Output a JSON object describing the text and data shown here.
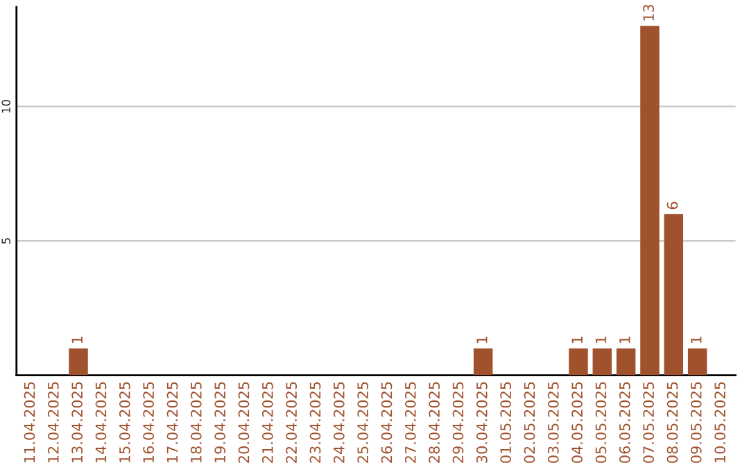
{
  "chart_data": {
    "type": "bar",
    "categories": [
      "11.04.2025",
      "12.04.2025",
      "13.04.2025",
      "14.04.2025",
      "15.04.2025",
      "16.04.2025",
      "17.04.2025",
      "18.04.2025",
      "19.04.2025",
      "20.04.2025",
      "21.04.2025",
      "22.04.2025",
      "23.04.2025",
      "24.04.2025",
      "25.04.2025",
      "26.04.2025",
      "27.04.2025",
      "28.04.2025",
      "29.04.2025",
      "30.04.2025",
      "01.05.2025",
      "02.05.2025",
      "03.05.2025",
      "04.05.2025",
      "05.05.2025",
      "06.05.2025",
      "07.05.2025",
      "08.05.2025",
      "09.05.2025",
      "10.05.2025"
    ],
    "values": [
      0,
      0,
      1,
      0,
      0,
      0,
      0,
      0,
      0,
      0,
      0,
      0,
      0,
      0,
      0,
      0,
      0,
      0,
      0,
      1,
      0,
      0,
      0,
      1,
      1,
      1,
      13,
      6,
      1,
      0
    ],
    "value_labels": [
      null,
      null,
      "1",
      null,
      null,
      null,
      null,
      null,
      null,
      null,
      null,
      null,
      null,
      null,
      null,
      null,
      null,
      null,
      null,
      "1",
      null,
      null,
      null,
      "1",
      "1",
      "1",
      "13",
      "6",
      "1",
      null
    ],
    "color": "#a0522d",
    "ylim": [
      0,
      13.7
    ],
    "yticks": [
      5,
      10
    ],
    "grid": "y"
  }
}
